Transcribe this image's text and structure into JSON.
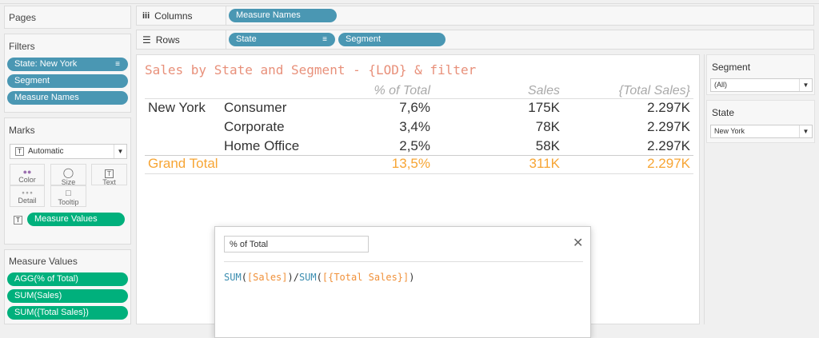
{
  "shelves": {
    "pages_label": "Pages",
    "columns_label": "Columns",
    "rows_label": "Rows",
    "columns_pills": [
      "Measure Names"
    ],
    "rows_pills": [
      "State",
      "Segment"
    ]
  },
  "filters": {
    "title": "Filters",
    "pills": [
      "State: New York",
      "Segment",
      "Measure Names"
    ]
  },
  "marks": {
    "title": "Marks",
    "type": "Automatic",
    "cards": [
      "Color",
      "Size",
      "Text",
      "Detail",
      "Tooltip"
    ],
    "text_pill": "Measure Values"
  },
  "measure_values": {
    "title": "Measure Values",
    "pills": [
      "AGG(% of Total)",
      "SUM(Sales)",
      "SUM({Total Sales})"
    ]
  },
  "view": {
    "title": "Sales by State and Segment - {LOD} & filter",
    "headers": [
      "% of Total",
      "Sales",
      "{Total Sales}"
    ],
    "state": "New York",
    "rows": [
      {
        "segment": "Consumer",
        "pct": "7,6%",
        "sales": "175K",
        "total": "2.297K"
      },
      {
        "segment": "Corporate",
        "pct": "3,4%",
        "sales": "78K",
        "total": "2.297K"
      },
      {
        "segment": "Home Office",
        "pct": "2,5%",
        "sales": "58K",
        "total": "2.297K"
      }
    ],
    "grand_total": {
      "label": "Grand Total",
      "pct": "13,5%",
      "sales": "311K",
      "total": "2.297K"
    },
    "colors": {
      "title": "#e8907a",
      "total": "#f7a534",
      "pill_blue": "#4a97b3",
      "pill_green": "#00b07c"
    }
  },
  "quick_filters": [
    {
      "title": "Segment",
      "value": "(All)"
    },
    {
      "title": "State",
      "value": "New York"
    }
  ],
  "calc_dialog": {
    "name": "% of Total",
    "formula": [
      {
        "t": "SUM",
        "c": "fn"
      },
      {
        "t": "(",
        "c": "p"
      },
      {
        "t": "[Sales]",
        "c": "f"
      },
      {
        "t": ")/",
        "c": "p"
      },
      {
        "t": "SUM",
        "c": "fn"
      },
      {
        "t": "(",
        "c": "p"
      },
      {
        "t": "[{Total Sales}]",
        "c": "f"
      },
      {
        "t": ")",
        "c": "p"
      }
    ]
  }
}
